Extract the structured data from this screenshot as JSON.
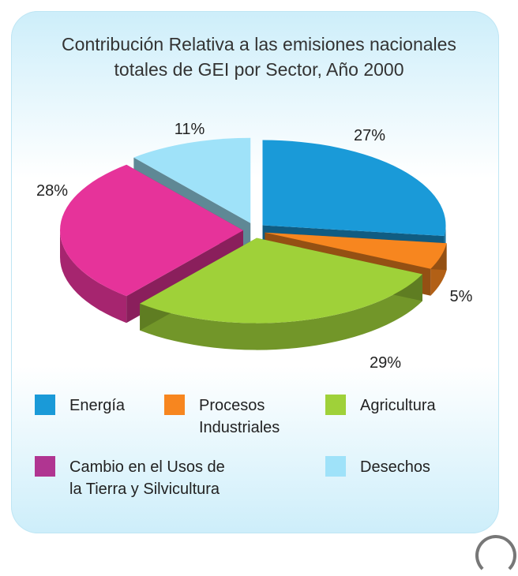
{
  "title_line1": "Contribución Relativa a las emisiones nacionales",
  "title_line2": "totales de GEI por Sector, Año 2000",
  "chart_data": {
    "type": "pie",
    "title": "Contribución Relativa a las emisiones nacionales totales de GEI por Sector, Año 2000",
    "slices": [
      {
        "label": "Energía",
        "value": 27,
        "value_label": "27%",
        "color": "#1a9ad8"
      },
      {
        "label": "Procesos Industriales",
        "value": 5,
        "value_label": "5%",
        "color": "#f7861f"
      },
      {
        "label": "Agricultura",
        "value": 29,
        "value_label": "29%",
        "color": "#9fd139"
      },
      {
        "label": "Cambio en el Usos de la Tierra y Silvicultura",
        "value": 28,
        "value_label": "28%",
        "color": "#e6339a"
      },
      {
        "label": "Desechos",
        "value": 11,
        "value_label": "11%",
        "color": "#9fe2f9"
      }
    ]
  },
  "legend": [
    {
      "label": "Energía",
      "color": "#1a9ad8"
    },
    {
      "label": "Procesos\nIndustriales",
      "color": "#f7861f"
    },
    {
      "label": "Agricultura",
      "color": "#9fd139"
    },
    {
      "label": "Cambio en el Usos de\nla Tierra y Silvicultura",
      "color": "#b03591"
    },
    {
      "label": "Desechos",
      "color": "#9fe2f9"
    }
  ]
}
